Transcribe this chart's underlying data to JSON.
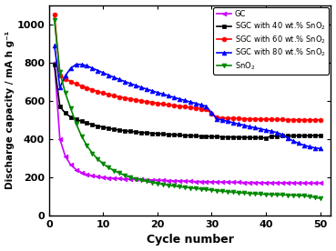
{
  "title": "",
  "xlabel": "Cycle number",
  "ylabel": "Discharge capacity / mA h g⁻¹",
  "xlim": [
    0,
    52
  ],
  "ylim": [
    0,
    1100
  ],
  "yticks": [
    0,
    200,
    400,
    600,
    800,
    1000
  ],
  "xticks": [
    0,
    10,
    20,
    30,
    40,
    50
  ],
  "background": "#ffffff",
  "series": [
    {
      "label": "GC",
      "color": "#cc00ff",
      "marker": "<",
      "markersize": 3.5,
      "x": [
        1,
        2,
        3,
        4,
        5,
        6,
        7,
        8,
        9,
        10,
        11,
        12,
        13,
        14,
        15,
        16,
        17,
        18,
        19,
        20,
        21,
        22,
        23,
        24,
        25,
        26,
        27,
        28,
        29,
        30,
        31,
        32,
        33,
        34,
        35,
        36,
        37,
        38,
        39,
        40,
        41,
        42,
        43,
        44,
        45,
        46,
        47,
        48,
        49,
        50
      ],
      "y": [
        800,
        400,
        310,
        265,
        240,
        225,
        215,
        208,
        204,
        200,
        197,
        195,
        193,
        191,
        190,
        189,
        188,
        187,
        186,
        185,
        184,
        183,
        182,
        181,
        180,
        179,
        178,
        178,
        177,
        176,
        176,
        175,
        175,
        174,
        174,
        173,
        173,
        173,
        172,
        172,
        172,
        171,
        171,
        171,
        171,
        170,
        170,
        170,
        170,
        170
      ]
    },
    {
      "label": "SGC with 40 wt.% SnO$_2$",
      "color": "#000000",
      "marker": "s",
      "markersize": 3.5,
      "x": [
        1,
        2,
        3,
        4,
        5,
        6,
        7,
        8,
        9,
        10,
        11,
        12,
        13,
        14,
        15,
        16,
        17,
        18,
        19,
        20,
        21,
        22,
        23,
        24,
        25,
        26,
        27,
        28,
        29,
        30,
        31,
        32,
        33,
        34,
        35,
        36,
        37,
        38,
        39,
        40,
        41,
        42,
        43,
        44,
        45,
        46,
        47,
        48,
        49,
        50
      ],
      "y": [
        790,
        570,
        535,
        515,
        503,
        492,
        483,
        475,
        468,
        462,
        456,
        451,
        447,
        443,
        440,
        437,
        434,
        432,
        430,
        428,
        426,
        424,
        422,
        421,
        419,
        418,
        416,
        415,
        414,
        413,
        412,
        411,
        410,
        410,
        409,
        408,
        408,
        407,
        407,
        406,
        415,
        415,
        416,
        416,
        416,
        417,
        417,
        417,
        418,
        418
      ]
    },
    {
      "label": "SGC with 60 wt.% SnO$_2$",
      "color": "#ff0000",
      "marker": "o",
      "markersize": 3.5,
      "x": [
        1,
        2,
        3,
        4,
        5,
        6,
        7,
        8,
        9,
        10,
        11,
        12,
        13,
        14,
        15,
        16,
        17,
        18,
        19,
        20,
        21,
        22,
        23,
        24,
        25,
        26,
        27,
        28,
        29,
        30,
        31,
        32,
        33,
        34,
        35,
        36,
        37,
        38,
        39,
        40,
        41,
        42,
        43,
        44,
        45,
        46,
        47,
        48,
        49,
        50
      ],
      "y": [
        1050,
        730,
        715,
        700,
        688,
        677,
        667,
        657,
        648,
        640,
        633,
        626,
        620,
        614,
        609,
        604,
        599,
        595,
        591,
        587,
        583,
        579,
        576,
        572,
        569,
        565,
        562,
        558,
        555,
        533,
        512,
        510,
        509,
        508,
        507,
        506,
        505,
        505,
        504,
        503,
        503,
        502,
        502,
        501,
        501,
        500,
        500,
        500,
        500,
        500
      ]
    },
    {
      "label": "SGC with 80 wt.% SnO$_2$",
      "color": "#0000ff",
      "marker": "^",
      "markersize": 3.5,
      "x": [
        1,
        2,
        3,
        4,
        5,
        6,
        7,
        8,
        9,
        10,
        11,
        12,
        13,
        14,
        15,
        16,
        17,
        18,
        19,
        20,
        21,
        22,
        23,
        24,
        25,
        26,
        27,
        28,
        29,
        30,
        31,
        32,
        33,
        34,
        35,
        36,
        37,
        38,
        39,
        40,
        41,
        42,
        43,
        44,
        45,
        46,
        47,
        48,
        49,
        50
      ],
      "y": [
        890,
        670,
        730,
        770,
        790,
        790,
        782,
        770,
        758,
        746,
        734,
        722,
        711,
        700,
        690,
        680,
        670,
        661,
        652,
        643,
        635,
        626,
        618,
        610,
        602,
        594,
        587,
        579,
        571,
        536,
        505,
        499,
        492,
        485,
        478,
        472,
        465,
        459,
        453,
        447,
        441,
        434,
        424,
        405,
        390,
        378,
        368,
        360,
        354,
        350
      ]
    },
    {
      "label": "SnO$_2$",
      "color": "#008800",
      "marker": "v",
      "markersize": 3.5,
      "x": [
        1,
        2,
        3,
        4,
        5,
        6,
        7,
        8,
        9,
        10,
        11,
        12,
        13,
        14,
        15,
        16,
        17,
        18,
        19,
        20,
        21,
        22,
        23,
        24,
        25,
        26,
        27,
        28,
        29,
        30,
        31,
        32,
        33,
        34,
        35,
        36,
        37,
        38,
        39,
        40,
        41,
        42,
        43,
        44,
        45,
        46,
        47,
        48,
        49,
        50
      ],
      "y": [
        1020,
        750,
        640,
        560,
        480,
        415,
        365,
        325,
        295,
        270,
        250,
        235,
        222,
        210,
        200,
        192,
        185,
        179,
        173,
        168,
        163,
        159,
        155,
        151,
        148,
        145,
        142,
        139,
        136,
        133,
        130,
        127,
        125,
        122,
        120,
        118,
        116,
        114,
        112,
        111,
        110,
        109,
        108,
        107,
        106,
        105,
        104,
        100,
        95,
        90
      ]
    }
  ]
}
